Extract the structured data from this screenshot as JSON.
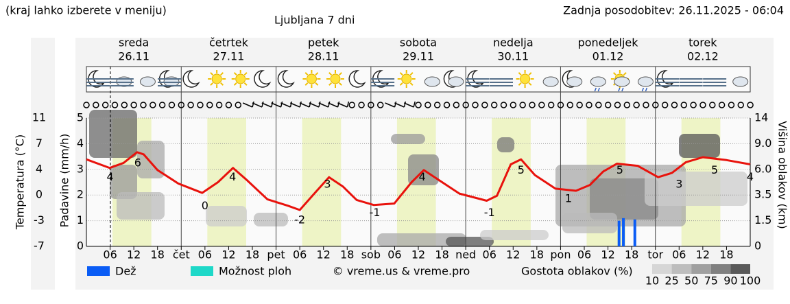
{
  "chart_data": {
    "type": "line",
    "title": "Ljubljana 7 dni",
    "note": "(kraj lahko izberete v meniju)",
    "updated": "Zadnja posodobitev: 26.11.2025 - 06:04",
    "credit": "© vreme.us & vreme.pro",
    "now": 6.07,
    "days": [
      {
        "name": "sreda",
        "date": "26.11",
        "color": "#000000"
      },
      {
        "name": "četrtek",
        "date": "27.11",
        "color": "#000000"
      },
      {
        "name": "petek",
        "date": "28.11",
        "color": "#000000"
      },
      {
        "name": "sobota",
        "date": "29.11",
        "color": "#e00000"
      },
      {
        "name": "nedelja",
        "date": "30.11",
        "color": "#e00000"
      },
      {
        "name": "ponedeljek",
        "date": "01.12",
        "color": "#000000"
      },
      {
        "name": "torek",
        "date": "02.12",
        "color": "#000000"
      }
    ],
    "xlim": [
      0,
      168
    ],
    "xticks": [
      {
        "value": 6,
        "label": "06"
      },
      {
        "value": 12,
        "label": "12"
      },
      {
        "value": 18,
        "label": "18"
      },
      {
        "value": 24,
        "label": "čet"
      },
      {
        "value": 30,
        "label": "06"
      },
      {
        "value": 36,
        "label": "12"
      },
      {
        "value": 42,
        "label": "18"
      },
      {
        "value": 48,
        "label": "pet"
      },
      {
        "value": 54,
        "label": "06"
      },
      {
        "value": 60,
        "label": "12"
      },
      {
        "value": 66,
        "label": "18"
      },
      {
        "value": 72,
        "label": "sob"
      },
      {
        "value": 78,
        "label": "06"
      },
      {
        "value": 84,
        "label": "12"
      },
      {
        "value": 90,
        "label": "18"
      },
      {
        "value": 96,
        "label": "ned"
      },
      {
        "value": 102,
        "label": "06"
      },
      {
        "value": 108,
        "label": "12"
      },
      {
        "value": 114,
        "label": "18"
      },
      {
        "value": 120,
        "label": "pon"
      },
      {
        "value": 126,
        "label": "06"
      },
      {
        "value": 132,
        "label": "12"
      },
      {
        "value": 138,
        "label": "18"
      },
      {
        "value": 144,
        "label": "tor"
      },
      {
        "value": 150,
        "label": "06"
      },
      {
        "value": 156,
        "label": "12"
      },
      {
        "value": 162,
        "label": "18"
      }
    ],
    "precip": {
      "label": "Padavine (mm/h)",
      "ylim": [
        0,
        5
      ],
      "yticks": [
        0,
        1,
        2,
        3,
        4,
        5
      ]
    },
    "cloud_height": {
      "label": "Višina oblakov (km)",
      "yticks": [
        0,
        1.5,
        3.5,
        {
          "value": 6,
          "label": "6.0"
        },
        {
          "value": 9,
          "label": "9.0"
        },
        14
      ]
    },
    "temperature": {
      "label": "Temperatura (°C)",
      "color": "#e8120c",
      "ylim": [
        -7,
        11
      ],
      "yticks": [
        -7,
        {
          "value": -3.4,
          "label": "-3"
        },
        {
          "value": 0.2,
          "label": "0"
        },
        {
          "value": 3.8,
          "label": "4"
        },
        {
          "value": 7.4,
          "label": "7"
        },
        11
      ],
      "x": [
        0,
        5.9,
        9.4,
        12.8,
        14.5,
        18,
        23.3,
        29.3,
        33.3,
        37.1,
        40.6,
        45.8,
        51,
        54,
        58,
        61.4,
        64.9,
        68.4,
        72.7,
        77.9,
        82.3,
        85.4,
        89.2,
        94.4,
        101.3,
        103.9,
        107.4,
        110,
        113.5,
        118.7,
        123.9,
        127.4,
        130.8,
        134.3,
        139.5,
        144.7,
        148.2,
        151.7,
        156,
        162,
        168
      ],
      "values": [
        5.2,
        4.0,
        4.7,
        6.2,
        5.9,
        3.7,
        1.8,
        0.5,
        2.0,
        4.0,
        2.3,
        -0.4,
        -1.3,
        -1.9,
        0.6,
        2.7,
        1.4,
        -0.5,
        -1.2,
        -1.0,
        2.0,
        3.7,
        2.3,
        0.4,
        -0.6,
        0.1,
        4.5,
        5.2,
        3.0,
        1.1,
        0.8,
        1.6,
        3.5,
        4.6,
        4.3,
        2.7,
        3.3,
        4.8,
        5.5,
        5.1,
        4.5
      ],
      "point_labels": {
        "x": [
          6,
          13,
          30,
          37,
          54,
          61,
          73,
          85,
          102,
          110,
          122,
          135,
          150,
          159,
          168
        ],
        "values": [
          4,
          6,
          0,
          4,
          -2,
          3,
          -1,
          4,
          -1,
          5,
          1,
          5,
          3,
          5,
          4
        ]
      }
    },
    "rain": {
      "name": "Dež",
      "color": "#0a5cf5",
      "x": [
        134.8,
        135.9,
        138.8
      ],
      "values": [
        1.0,
        1.1,
        1.05
      ]
    },
    "showers": {
      "name": "Možnost ploh",
      "color": "#1ed8c8"
    },
    "cloud_density": {
      "label": "Gostota oblakov (%)",
      "levels": [
        10,
        25,
        50,
        75,
        90,
        100
      ],
      "colors": [
        "#d6d6d6",
        "#bdbdbd",
        "#a0a0a0",
        "#808080",
        "#5a5a5a"
      ]
    }
  }
}
